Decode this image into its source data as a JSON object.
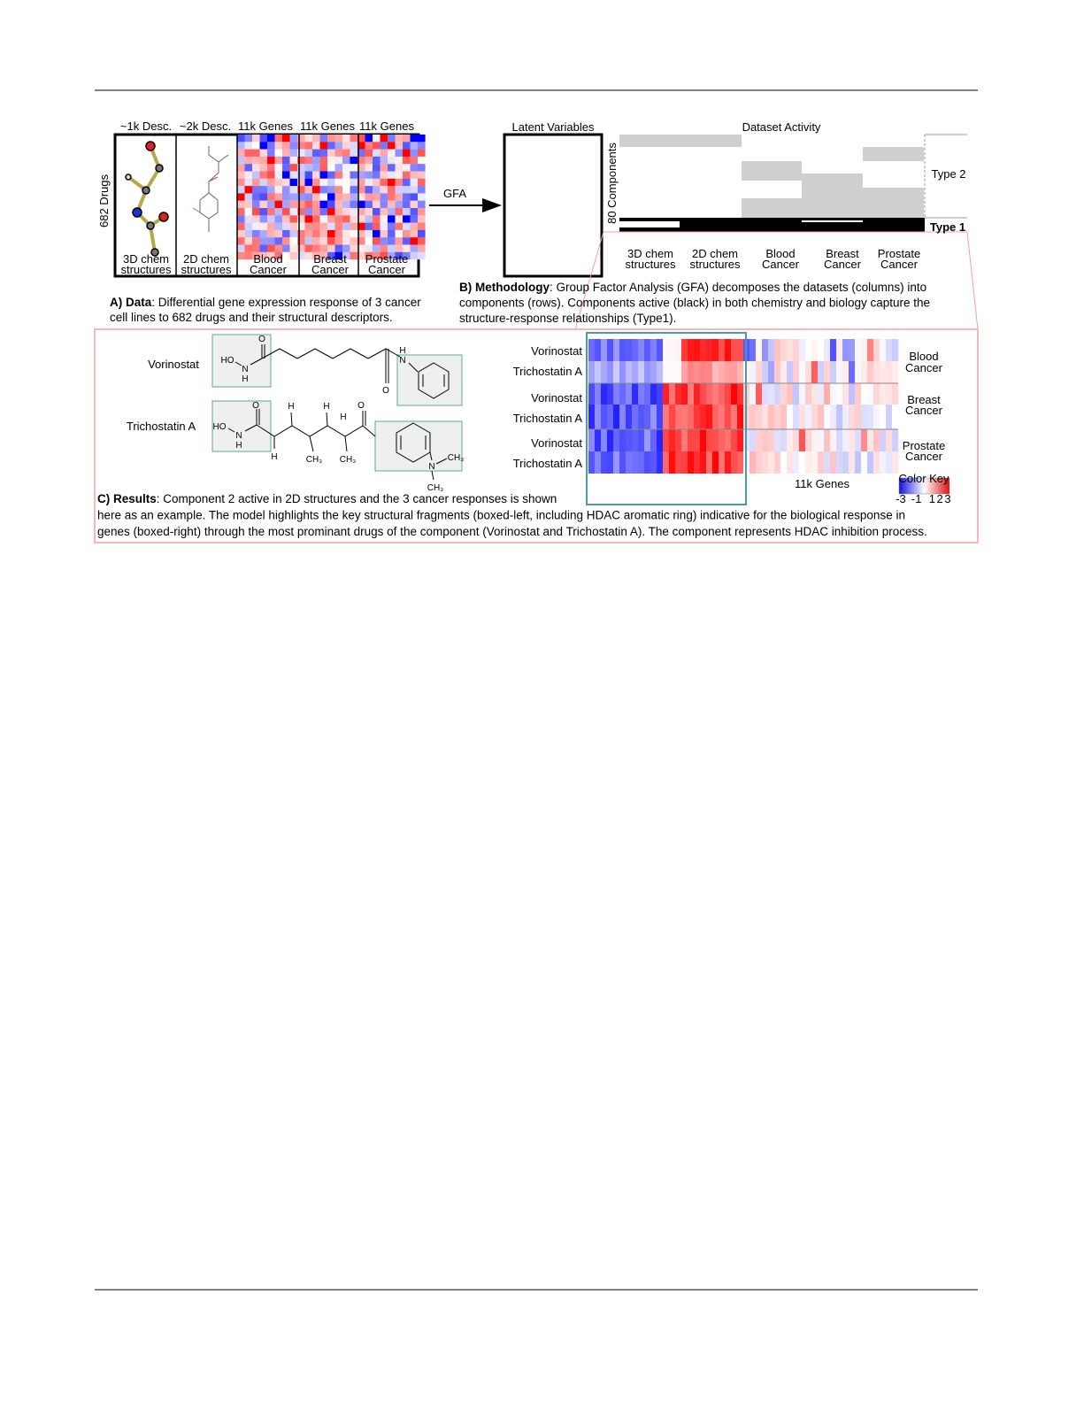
{
  "panel_a": {
    "col_headers": [
      "~1k Desc.",
      "~2k Desc.",
      "11k Genes",
      "11k Genes",
      "11k Genes"
    ],
    "row_label": "682 Drugs",
    "col_labels": [
      [
        "3D chem",
        "structures"
      ],
      [
        "2D chem",
        "structures"
      ],
      [
        "Blood",
        "Cancer"
      ],
      [
        "Breast",
        "Cancer"
      ],
      [
        "Prostate",
        "Cancer"
      ]
    ],
    "caption": {
      "label": "A) Data",
      "lines": [
        ": Differential gene expression response of 3 cancer",
        "cell lines to 682 drugs and their structural descriptors."
      ]
    }
  },
  "arrow_label": "GFA",
  "panel_b": {
    "latent_title": "Latent Variables",
    "activity_title": "Dataset Activity",
    "row_label": "80 Components",
    "type_labels": [
      "Type 2",
      "Type 1"
    ],
    "col_labels": [
      [
        "3D chem",
        "structures"
      ],
      [
        "2D chem",
        "structures"
      ],
      [
        "Blood",
        "Cancer"
      ],
      [
        "Breast",
        "Cancer"
      ],
      [
        "Prostate",
        "Cancer"
      ]
    ],
    "caption": {
      "label": "B) Methodology",
      "lines": [
        ": Group Factor Analysis (GFA) decomposes the datasets (columns) into",
        "components (rows). Components active (black) in both chemistry and biology capture the",
        "structure-response relationships (Type1)."
      ]
    }
  },
  "panel_c": {
    "molecules": [
      {
        "name": "Vorinostat",
        "atoms": [
          "O",
          "HO",
          "N",
          "H",
          "O",
          "H",
          "N"
        ]
      },
      {
        "name": "Trichostatin A",
        "atoms": [
          "O",
          "HO",
          "N",
          "H",
          "H",
          "H",
          "H",
          "O",
          "H",
          "CH₃",
          "CH₃",
          "N",
          "CH₃",
          "CH₃"
        ]
      }
    ],
    "heatmap_rows": [
      "Vorinostat",
      "Trichostatin A",
      "Vorinostat",
      "Trichostatin A",
      "Vorinostat",
      "Trichostatin A"
    ],
    "cancers": [
      [
        "Blood",
        "Cancer"
      ],
      [
        "Breast",
        "Cancer"
      ],
      [
        "Prostate",
        "Cancer"
      ]
    ],
    "genes_label": "11k Genes",
    "color_key": {
      "title": "Color Key",
      "ticks": [
        -3,
        -1,
        1,
        2,
        3
      ]
    },
    "caption": {
      "label": "C) Results",
      "lines": [
        ": Component 2 active in 2D structures and the 3 cancer responses is shown",
        "here as an example. The model highlights the key structural fragments (boxed-left, including HDAC aromatic ring) indicative for the biological response in",
        "genes (boxed-right) through the most prominant drugs of the component (Vorinostat and Trichostatin A). The component represents HDAC inhibition process."
      ]
    }
  }
}
